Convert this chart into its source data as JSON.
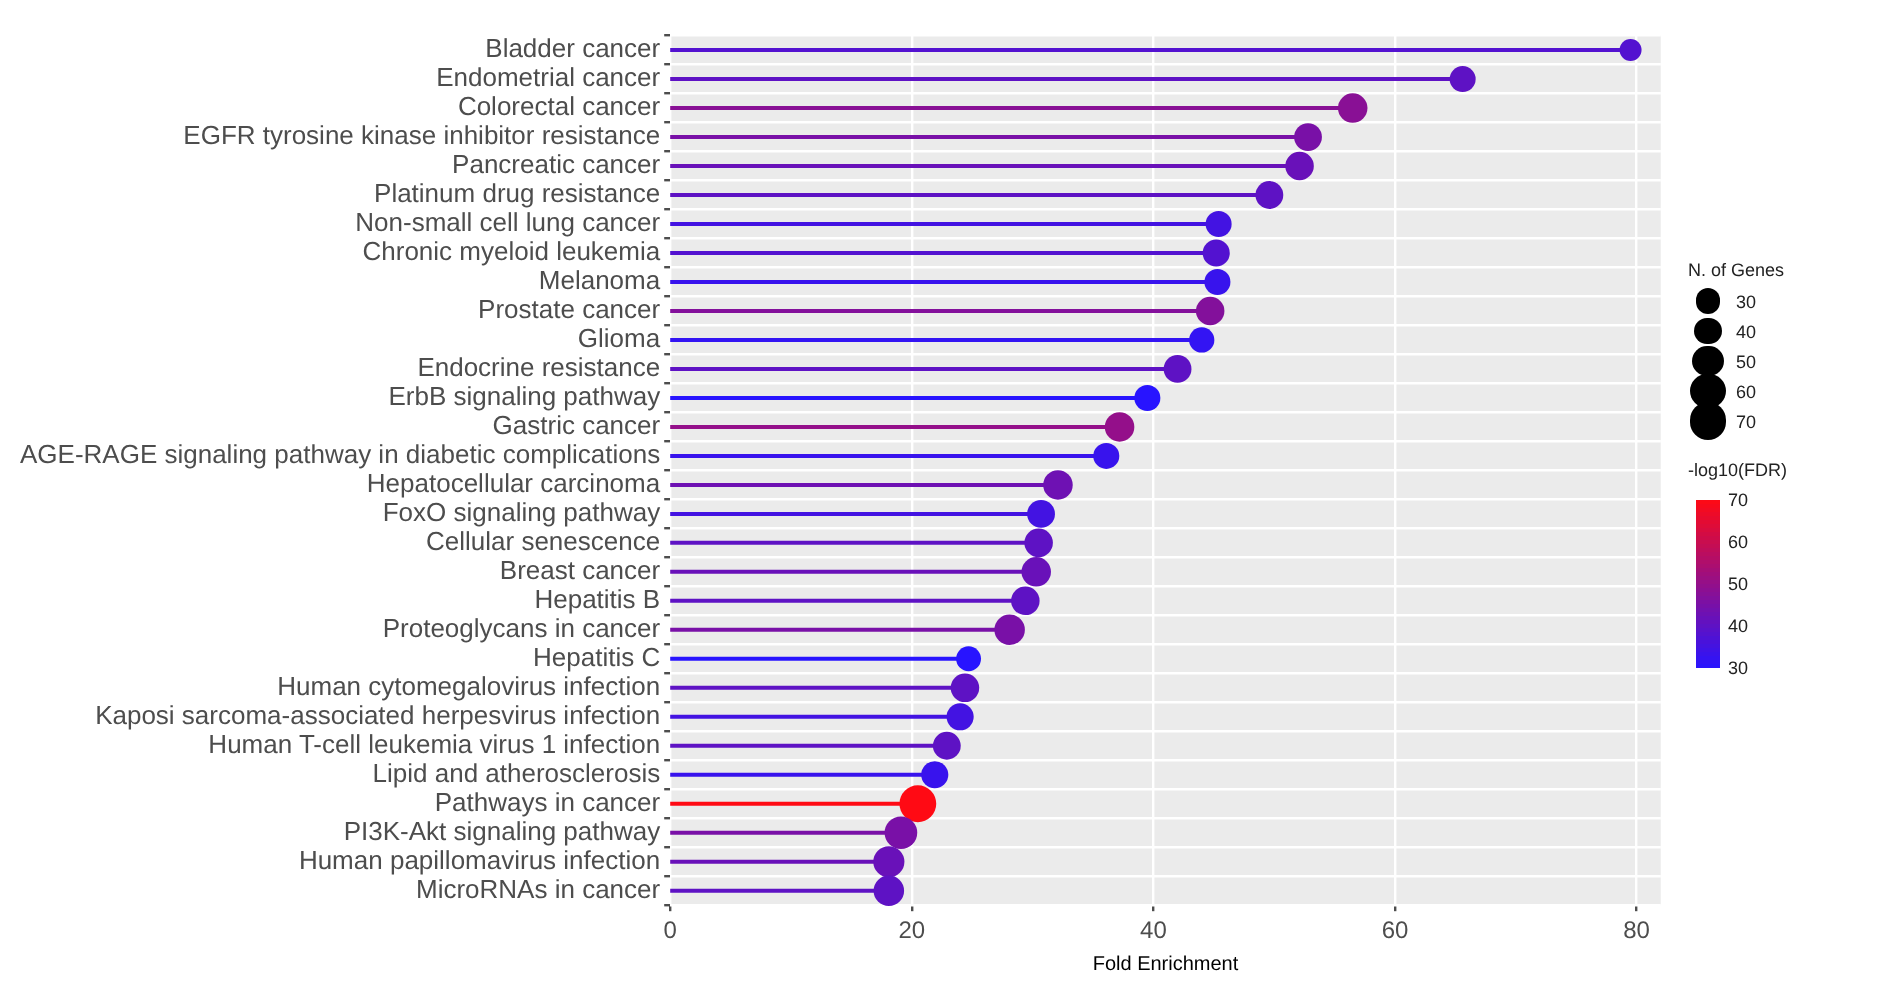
{
  "chart_data": {
    "type": "lollipop",
    "orientation": "horizontal",
    "xlabel": "Fold Enrichment",
    "categories": [
      "Bladder cancer",
      "Endometrial cancer",
      "Colorectal cancer",
      "EGFR tyrosine kinase inhibitor resistance",
      "Pancreatic cancer",
      "Platinum drug resistance",
      "Non-small cell lung cancer",
      "Chronic myeloid leukemia",
      "Melanoma",
      "Prostate cancer",
      "Glioma",
      "Endocrine resistance",
      "ErbB signaling pathway",
      "Gastric cancer",
      "AGE-RAGE signaling pathway in diabetic complications",
      "Hepatocellular carcinoma",
      "FoxO signaling pathway",
      "Cellular senescence",
      "Breast cancer",
      "Hepatitis B",
      "Proteoglycans in cancer",
      "Hepatitis C",
      "Human cytomegalovirus infection",
      "Kaposi sarcoma-associated herpesvirus infection",
      "Human T-cell leukemia virus 1 infection",
      "Lipid and atherosclerosis",
      "Pathways in cancer",
      "PI3K-Akt signaling pathway",
      "Human papillomavirus infection",
      "MicroRNAs in cancer"
    ],
    "values": [
      79.5,
      65.6,
      56.5,
      52.8,
      52.1,
      49.6,
      45.4,
      45.2,
      45.3,
      44.7,
      44,
      42,
      39.5,
      37.2,
      36.1,
      32.1,
      30.7,
      30.5,
      30.3,
      29.4,
      28.1,
      24.7,
      24.4,
      24,
      22.9,
      21.9,
      20.5,
      19.1,
      18.1,
      18.1
    ],
    "sizes": [
      25,
      35,
      45,
      40,
      42,
      40,
      35,
      38,
      35,
      42,
      33,
      40,
      35,
      45,
      35,
      45,
      40,
      42,
      45,
      42,
      48,
      32,
      42,
      38,
      40,
      38,
      70,
      55,
      50,
      48
    ],
    "size_legend": [
      30,
      40,
      50,
      60,
      70
    ],
    "legend_title": "N. of Genes",
    "cvalues": [
      38,
      40,
      48,
      45,
      42,
      40,
      35,
      38,
      33,
      47,
      32,
      40,
      30,
      50,
      33,
      43,
      35,
      40,
      42,
      40,
      45,
      30,
      40,
      35,
      40,
      33,
      70,
      45,
      42,
      40
    ],
    "clabel": "-log10(FDR)",
    "clim": [
      30,
      70
    ],
    "cticks": [
      30,
      40,
      50,
      60,
      70
    ],
    "xlim": [
      0,
      82
    ],
    "xticks": [
      0,
      20,
      40,
      60,
      80
    ],
    "grid": true
  }
}
